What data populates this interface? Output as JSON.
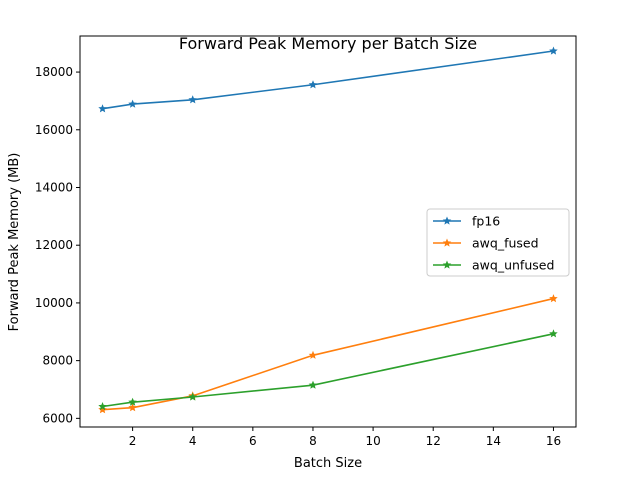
{
  "chart_data": {
    "type": "line",
    "title": "Forward Peak Memory per Batch Size",
    "xlabel": "Batch Size",
    "ylabel": "Forward Peak Memory (MB)",
    "x": [
      1,
      2,
      4,
      8,
      16
    ],
    "xlim": [
      0.25,
      16.75
    ],
    "ylim": [
      5700,
      19250
    ],
    "xticks": [
      2,
      4,
      6,
      8,
      10,
      12,
      14,
      16
    ],
    "yticks": [
      6000,
      8000,
      10000,
      12000,
      14000,
      16000,
      18000
    ],
    "grid": false,
    "legend_placement": "center-right",
    "marker": "star",
    "series": [
      {
        "name": "fp16",
        "color": "#1f77b4",
        "values": [
          16730,
          16890,
          17040,
          17560,
          18730
        ]
      },
      {
        "name": "awq_fused",
        "color": "#ff7f0e",
        "values": [
          6300,
          6370,
          6780,
          8185,
          10150
        ]
      },
      {
        "name": "awq_unfused",
        "color": "#2ca02c",
        "values": [
          6410,
          6560,
          6740,
          7150,
          8930
        ]
      }
    ]
  }
}
